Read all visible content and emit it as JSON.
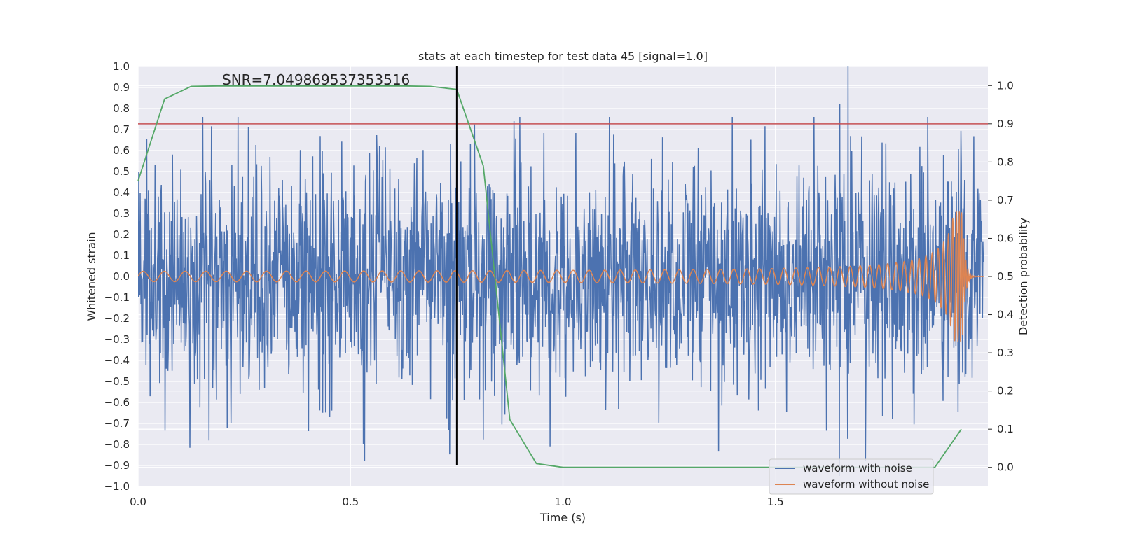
{
  "chart_data": {
    "type": "line",
    "title": "stats at each timestep for test data 45 [signal=1.0]",
    "annotation": "SNR=7.049869537353516",
    "xlabel": "Time (s)",
    "ylabel": "Whitened strain",
    "y2label": "Detection probability",
    "xlim": [
      0.0,
      2.0
    ],
    "ylim": [
      -1.0,
      1.0
    ],
    "y2lim": [
      -0.05,
      1.05
    ],
    "xticks": [
      0.0,
      0.5,
      1.0,
      1.5
    ],
    "xtick_labels": [
      "0.0",
      "0.5",
      "1.0",
      "1.5"
    ],
    "yticks": [
      -1.0,
      -0.9,
      -0.8,
      -0.7,
      -0.6,
      -0.5,
      -0.4,
      -0.3,
      -0.2,
      -0.1,
      0.0,
      0.1,
      0.2,
      0.3,
      0.4,
      0.5,
      0.6,
      0.7,
      0.8,
      0.9,
      1.0
    ],
    "ytick_labels": [
      "−1.0",
      "−0.9",
      "−0.8",
      "−0.7",
      "−0.6",
      "−0.5",
      "−0.4",
      "−0.3",
      "−0.2",
      "−0.1",
      "0.0",
      "0.1",
      "0.2",
      "0.3",
      "0.4",
      "0.5",
      "0.6",
      "0.7",
      "0.8",
      "0.9",
      "1.0"
    ],
    "y2ticks": [
      0.0,
      0.1,
      0.2,
      0.3,
      0.4,
      0.5,
      0.6,
      0.7,
      0.8,
      0.9,
      1.0
    ],
    "y2tick_labels": [
      "0.0",
      "0.1",
      "0.2",
      "0.3",
      "0.4",
      "0.5",
      "0.6",
      "0.7",
      "0.8",
      "0.9",
      "1.0"
    ],
    "grid": true,
    "legend": {
      "placement": "lower-right",
      "entries": [
        {
          "label": "waveform with noise",
          "color": "#4c72b0"
        },
        {
          "label": "waveform without noise",
          "color": "#dd8452"
        }
      ]
    },
    "series": [
      {
        "name": "waveform with noise",
        "color": "#4c72b0",
        "kind": "noise",
        "amplitude_std": 0.28,
        "samples": 2048,
        "peaks": [
          {
            "x": 1.67,
            "y": 1.0
          },
          {
            "x": 1.65,
            "y": 0.82
          },
          {
            "x": 1.65,
            "y": -0.95
          },
          {
            "x": 0.75,
            "y": 0.71
          },
          {
            "x": 0.73,
            "y": -0.73
          },
          {
            "x": 0.26,
            "y": 0.71
          },
          {
            "x": 0.53,
            "y": -0.8
          }
        ]
      },
      {
        "name": "waveform without noise",
        "color": "#dd8452",
        "kind": "chirp",
        "merger_time": 1.94,
        "peak_amplitude": 0.31,
        "start_amplitude": 0.02,
        "start_frequency_hz": 20,
        "end_frequency_hz": 200
      },
      {
        "name": "detection probability",
        "color": "#55a868",
        "axis": "right",
        "x": [
          0.0,
          0.0625,
          0.125,
          0.1875,
          0.25,
          0.3125,
          0.375,
          0.4375,
          0.5,
          0.5625,
          0.625,
          0.6875,
          0.75,
          0.8125,
          0.875,
          0.9375,
          1.0,
          1.0625,
          1.125,
          1.1875,
          1.25,
          1.3125,
          1.375,
          1.4375,
          1.5,
          1.5625,
          1.625,
          1.6875,
          1.75,
          1.8125,
          1.875,
          1.9375
        ],
        "y": [
          0.75,
          0.965,
          0.998,
          0.999,
          0.999,
          0.999,
          0.999,
          0.999,
          0.999,
          0.999,
          0.999,
          0.998,
          0.99,
          0.79,
          0.125,
          0.01,
          0.0,
          0.0,
          0.0,
          0.0,
          0.0,
          0.0,
          0.0,
          0.0,
          0.0,
          0.0,
          0.0,
          0.0,
          0.0,
          0.0,
          0.0,
          0.1
        ]
      }
    ],
    "threshold": {
      "axis": "right",
      "y": 0.9,
      "color": "#c44e52"
    },
    "marker_line": {
      "x": 0.75,
      "y_from": -0.9,
      "y_to": 1.0,
      "color": "#000000"
    }
  }
}
